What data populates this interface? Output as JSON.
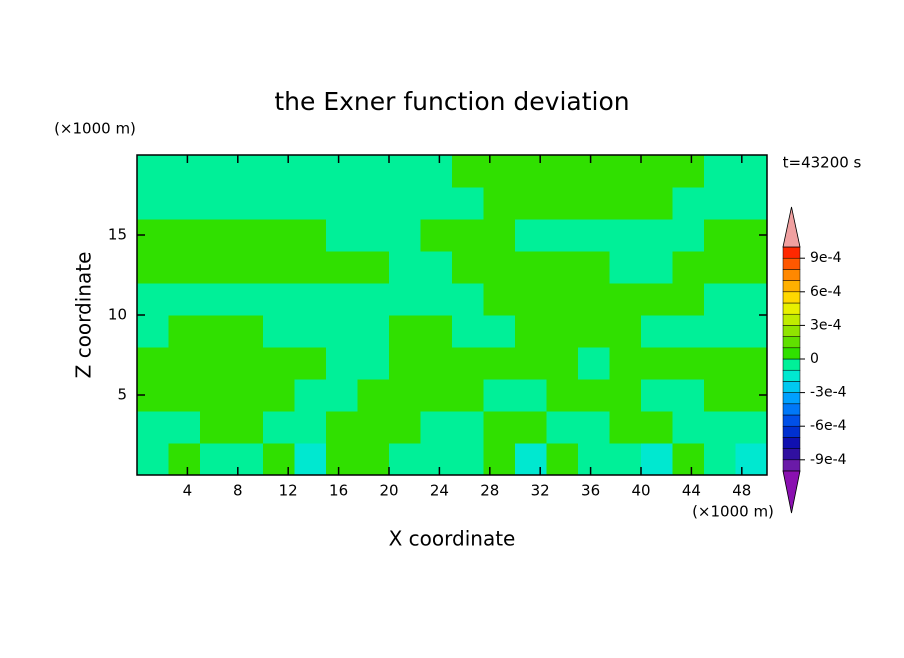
{
  "chart_data": {
    "type": "contour",
    "title": "the Exner function deviation",
    "x_label": "X coordinate",
    "y_label": "Z coordinate",
    "x_unit": "(×1000 m)",
    "y_unit": "(×1000 m)",
    "time_label": "t=43200 s",
    "xlim": [
      0,
      50
    ],
    "ylim": [
      0,
      20
    ],
    "xticks": [
      4,
      8,
      12,
      16,
      20,
      24,
      28,
      32,
      36,
      40,
      44,
      48
    ],
    "yticks": [
      5,
      10,
      15
    ],
    "z": [
      [
        -5e-05,
        5e-05,
        -5e-05,
        -5e-05,
        5e-05,
        -0.00015,
        5e-05,
        5e-05,
        -5e-05,
        -5e-05,
        -5e-05,
        5e-05,
        -0.00015,
        5e-05,
        -5e-05,
        -5e-05,
        -0.00015,
        5e-05,
        -5e-05,
        -0.00015
      ],
      [
        -5e-05,
        -5e-05,
        5e-05,
        5e-05,
        -5e-05,
        -5e-05,
        5e-05,
        5e-05,
        5e-05,
        -5e-05,
        -5e-05,
        5e-05,
        5e-05,
        -5e-05,
        -5e-05,
        5e-05,
        5e-05,
        -5e-05,
        -5e-05,
        -5e-05
      ],
      [
        5e-05,
        5e-05,
        5e-05,
        5e-05,
        5e-05,
        -5e-05,
        -5e-05,
        5e-05,
        5e-05,
        5e-05,
        5e-05,
        -5e-05,
        -5e-05,
        5e-05,
        5e-05,
        5e-05,
        -5e-05,
        -5e-05,
        5e-05,
        5e-05
      ],
      [
        5e-05,
        5e-05,
        5e-05,
        5e-05,
        5e-05,
        5e-05,
        -5e-05,
        -5e-05,
        5e-05,
        5e-05,
        5e-05,
        5e-05,
        5e-05,
        5e-05,
        -5e-05,
        5e-05,
        5e-05,
        5e-05,
        5e-05,
        5e-05
      ],
      [
        -5e-05,
        5e-05,
        5e-05,
        5e-05,
        -5e-05,
        -5e-05,
        -5e-05,
        -5e-05,
        5e-05,
        5e-05,
        -5e-05,
        -5e-05,
        5e-05,
        5e-05,
        5e-05,
        5e-05,
        -5e-05,
        -5e-05,
        -5e-05,
        -5e-05
      ],
      [
        -5e-05,
        -5e-05,
        -5e-05,
        -5e-05,
        -5e-05,
        -5e-05,
        -5e-05,
        -5e-05,
        -5e-05,
        -5e-05,
        -5e-05,
        5e-05,
        5e-05,
        5e-05,
        5e-05,
        5e-05,
        5e-05,
        5e-05,
        -5e-05,
        -5e-05
      ],
      [
        5e-05,
        5e-05,
        5e-05,
        5e-05,
        5e-05,
        5e-05,
        5e-05,
        5e-05,
        -5e-05,
        -5e-05,
        5e-05,
        5e-05,
        5e-05,
        5e-05,
        5e-05,
        -5e-05,
        -5e-05,
        5e-05,
        5e-05,
        5e-05
      ],
      [
        5e-05,
        5e-05,
        5e-05,
        5e-05,
        5e-05,
        5e-05,
        -5e-05,
        -5e-05,
        -5e-05,
        5e-05,
        5e-05,
        5e-05,
        -5e-05,
        -5e-05,
        -5e-05,
        -5e-05,
        -5e-05,
        -5e-05,
        5e-05,
        5e-05
      ],
      [
        -5e-05,
        -5e-05,
        -5e-05,
        -5e-05,
        -5e-05,
        -5e-05,
        -5e-05,
        -5e-05,
        -5e-05,
        -5e-05,
        -5e-05,
        5e-05,
        5e-05,
        5e-05,
        5e-05,
        5e-05,
        5e-05,
        -5e-05,
        -5e-05,
        -5e-05
      ],
      [
        -5e-05,
        -5e-05,
        -5e-05,
        -5e-05,
        -5e-05,
        -5e-05,
        -5e-05,
        -5e-05,
        -5e-05,
        -5e-05,
        5e-05,
        5e-05,
        5e-05,
        5e-05,
        5e-05,
        5e-05,
        5e-05,
        5e-05,
        -5e-05,
        -5e-05
      ]
    ],
    "levels": [
      -0.001,
      -0.0009,
      -0.0008,
      -0.0007,
      -0.0006,
      -0.0005,
      -0.0004,
      -0.0003,
      -0.0002,
      -0.0001,
      0,
      0.0001,
      0.0002,
      0.0003,
      0.0004,
      0.0005,
      0.0006,
      0.0007,
      0.0008,
      0.0009,
      0.001
    ],
    "colors": [
      "#6a1aa8",
      "#3010a0",
      "#1010b0",
      "#0030d0",
      "#0050e8",
      "#0078f8",
      "#00a0ff",
      "#00c8f0",
      "#00e8d0",
      "#00f098",
      "#30e000",
      "#60e000",
      "#90e400",
      "#c0ec00",
      "#e8f000",
      "#ffd800",
      "#ffb000",
      "#ff8800",
      "#ff5800",
      "#ff2800"
    ],
    "under_color": "#8a10b0",
    "over_color": "#f0a0a0",
    "colorbar_ticks": [
      {
        "value": 0.0009,
        "label": "9e-4"
      },
      {
        "value": 0.0006,
        "label": "6e-4"
      },
      {
        "value": 0.0003,
        "label": "3e-4"
      },
      0,
      {
        "value": -0.0003,
        "label": "-3e-4"
      },
      {
        "value": -0.0006,
        "label": "-6e-4"
      },
      {
        "value": -0.0009,
        "label": "-9e-4"
      }
    ]
  }
}
